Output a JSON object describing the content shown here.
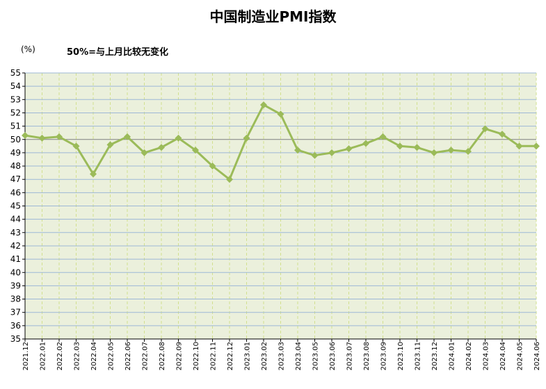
{
  "chart_data": {
    "type": "line",
    "title": "中国制造业PMI指数",
    "unit": "(%)",
    "note": "50%=与上月比较无变化",
    "xlabel": "",
    "ylabel": "",
    "ylim": [
      35,
      55
    ],
    "ytick_step": 1,
    "reference_line": 50,
    "grid": true,
    "categories": [
      "2021.12",
      "2022.01",
      "2022.02",
      "2022.03",
      "2022.04",
      "2022.05",
      "2022.06",
      "2022.07",
      "2022.08",
      "2022.09",
      "2022.10",
      "2022.11",
      "2022.12",
      "2023.01",
      "2023.02",
      "2023.03",
      "2023.04",
      "2023.05",
      "2023.06",
      "2023.07",
      "2023.08",
      "2023.09",
      "2023.10",
      "2023.11",
      "2023.12",
      "2024.01",
      "2024.02",
      "2024.03",
      "2024.04",
      "2024.05",
      "2024.06"
    ],
    "series": [
      {
        "values": [
          50.3,
          50.1,
          50.2,
          49.5,
          47.4,
          49.6,
          50.2,
          49.0,
          49.4,
          50.1,
          49.2,
          48.0,
          47.0,
          50.1,
          52.6,
          51.9,
          49.2,
          48.8,
          49.0,
          49.3,
          49.7,
          50.2,
          49.5,
          49.4,
          49.0,
          49.2,
          49.1,
          50.8,
          50.4,
          49.5,
          49.5
        ]
      }
    ],
    "colors": {
      "plot_background": "#ebf0dc",
      "line": "#9bbb59",
      "hgrid": "#9db7d6",
      "vgrid": "#d2e08e",
      "reference": "#808080"
    }
  }
}
